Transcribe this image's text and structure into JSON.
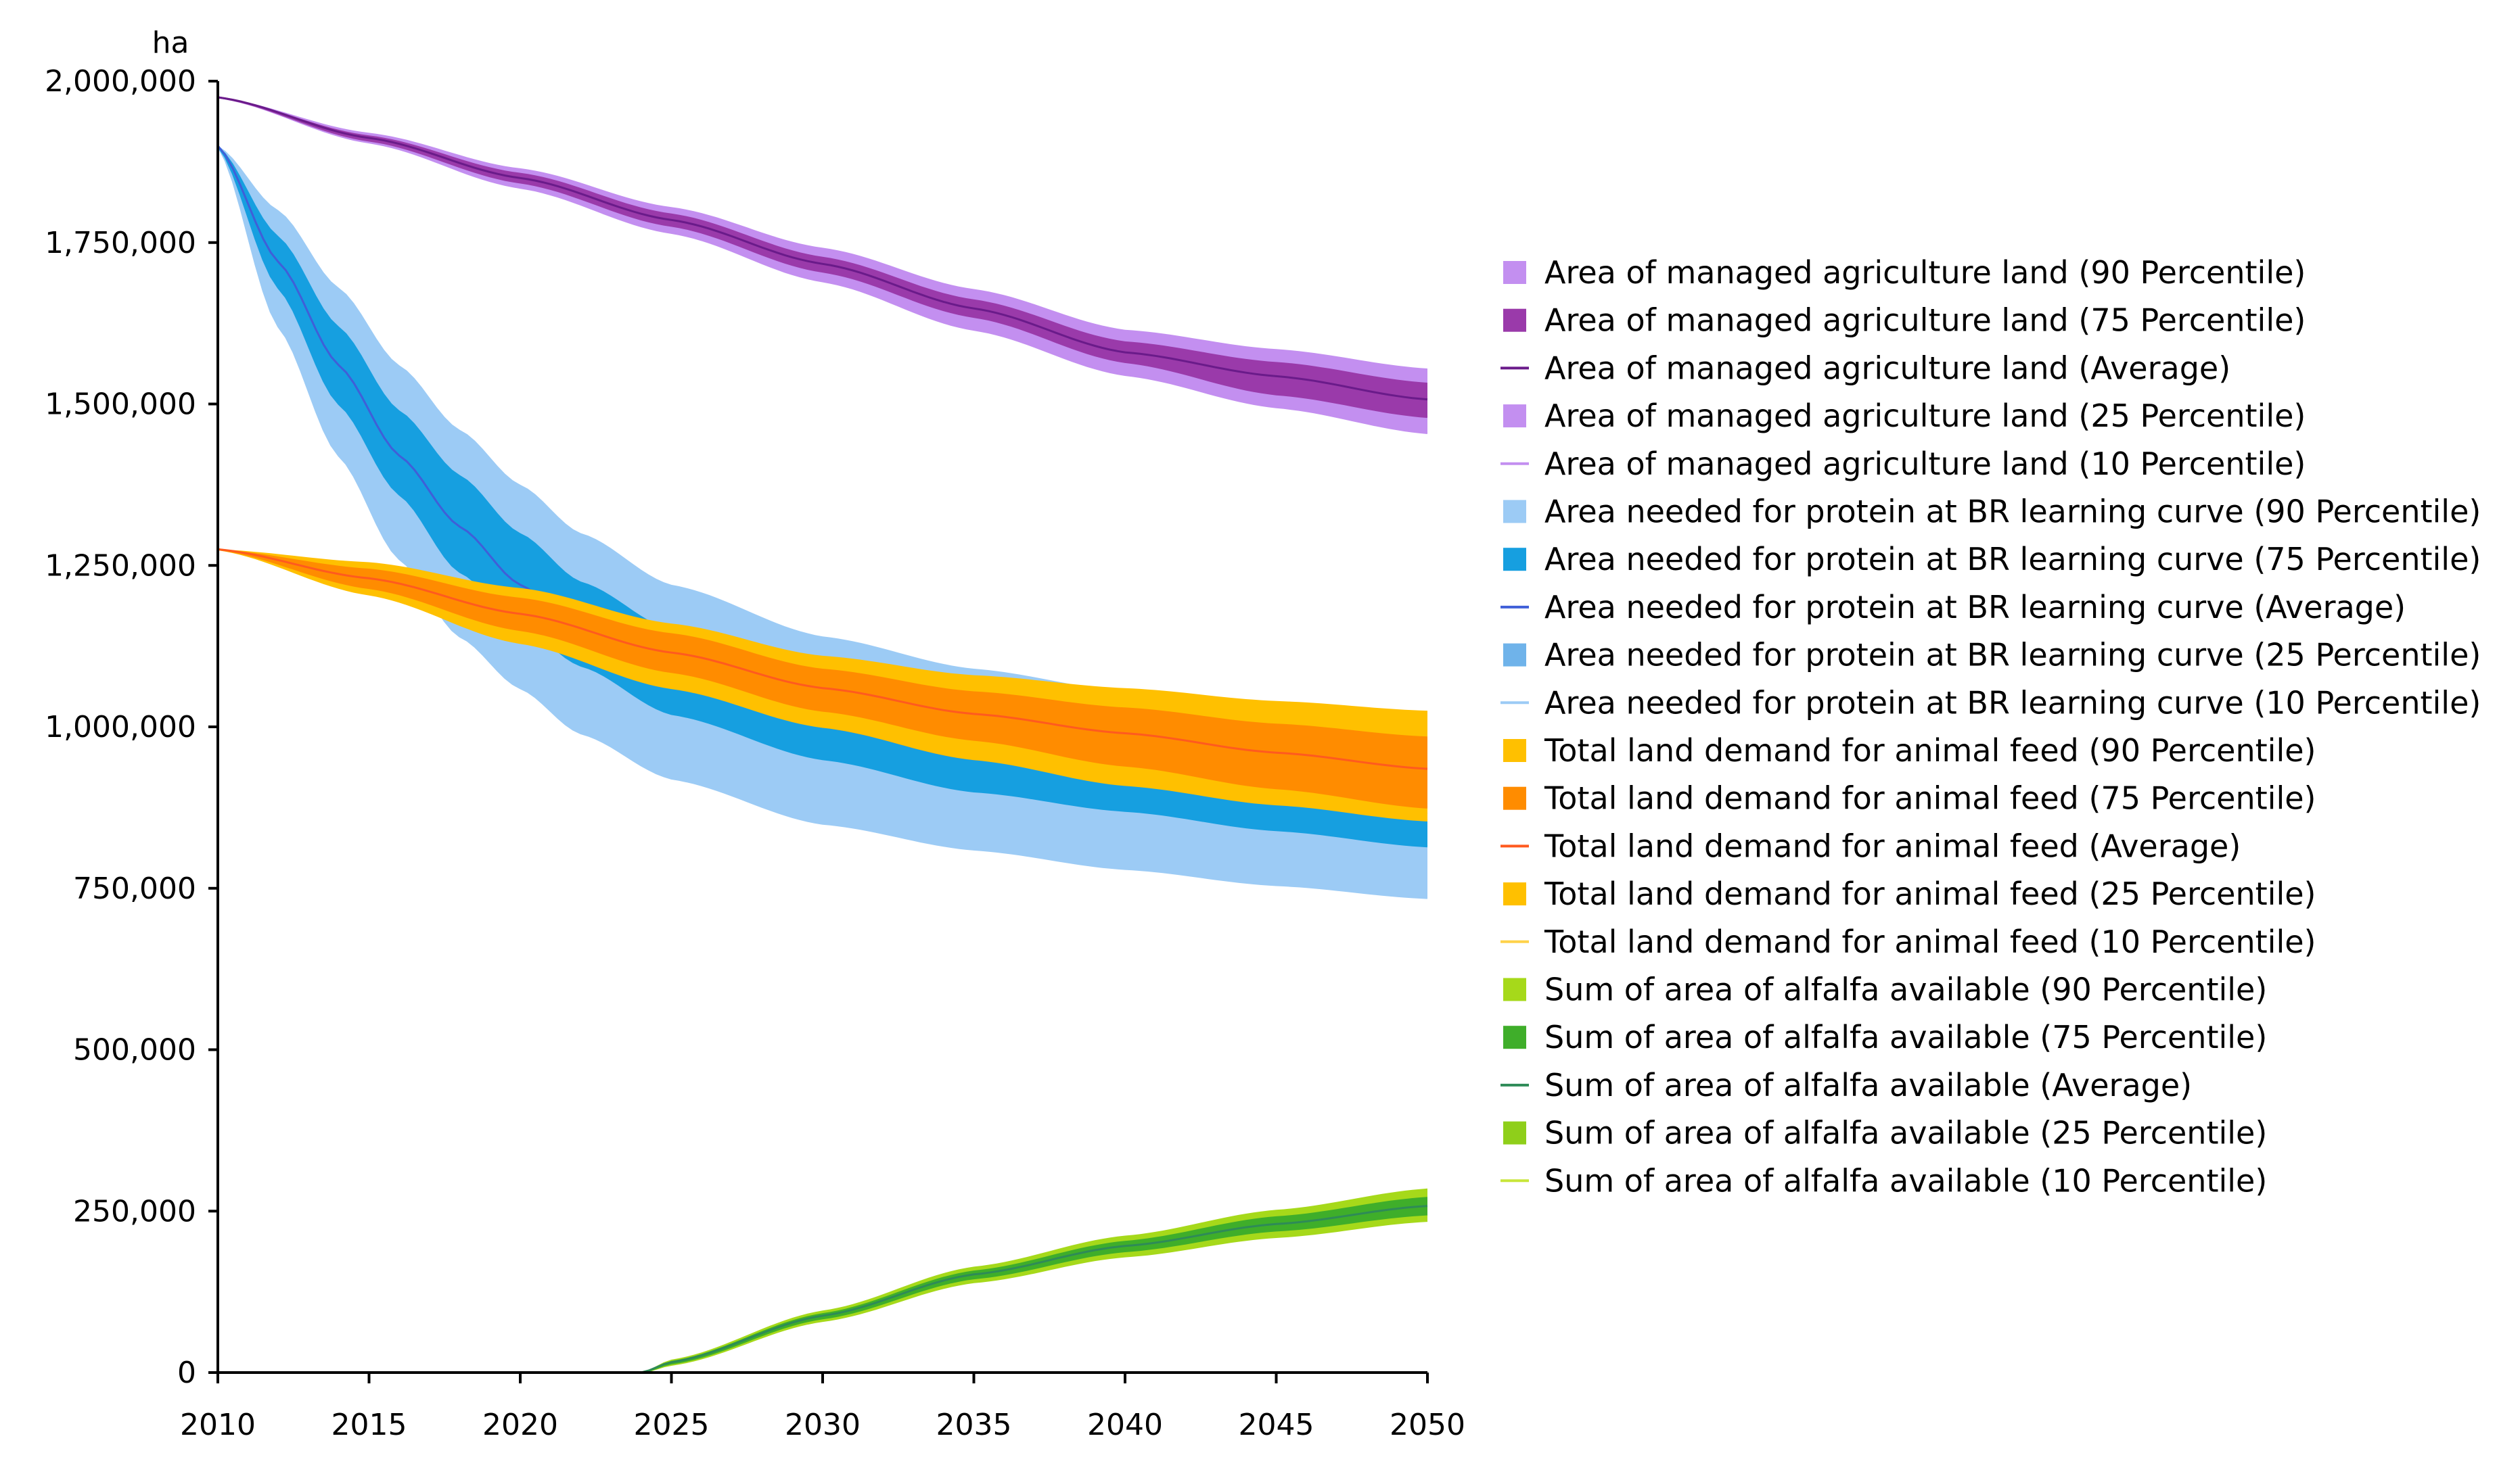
{
  "chart_data": {
    "type": "area",
    "title": "",
    "ylabel": "ha",
    "xlabel": "",
    "xlim": [
      2010,
      2050
    ],
    "ylim": [
      0,
      2000000
    ],
    "x_ticks": [
      2010,
      2015,
      2020,
      2025,
      2030,
      2035,
      2040,
      2045,
      2050
    ],
    "x_tick_labels": [
      "2010",
      "2015",
      "2020",
      "2025",
      "2030",
      "2035",
      "2040",
      "2045",
      "2050"
    ],
    "y_ticks": [
      0,
      250000,
      500000,
      750000,
      1000000,
      1250000,
      1500000,
      1750000,
      2000000
    ],
    "y_tick_labels": [
      "0",
      "250,000",
      "500,000",
      "750,000",
      "1,000,000",
      "1,250,000",
      "1,500,000",
      "1,750,000",
      "2,000,000"
    ],
    "legend_position": "right",
    "legend": [
      {
        "label": "Area of managed agriculture land (90 Percentile)",
        "color": "#c38ff0",
        "kind": "band"
      },
      {
        "label": "Area of managed agriculture land (75 Percentile)",
        "color": "#9a3aaa",
        "kind": "band"
      },
      {
        "label": "Area of managed agriculture land (Average)",
        "color": "#6a1b8a",
        "kind": "line"
      },
      {
        "label": "Area of managed agriculture land (25 Percentile)",
        "color": "#c38ff0",
        "kind": "band"
      },
      {
        "label": "Area of managed agriculture land (10 Percentile)",
        "color": "#c38ff0",
        "kind": "line"
      },
      {
        "label": "Area needed for protein at BR learning curve (90 Percentile)",
        "color": "#9ccbf5",
        "kind": "band"
      },
      {
        "label": "Area needed for protein at BR learning curve (75 Percentile)",
        "color": "#169fe0",
        "kind": "band"
      },
      {
        "label": "Area needed for protein at BR learning curve (Average)",
        "color": "#3f5fd8",
        "kind": "line"
      },
      {
        "label": "Area needed for protein at BR learning curve (25 Percentile)",
        "color": "#6fb3ea",
        "kind": "band"
      },
      {
        "label": "Area needed for protein at BR learning curve (10 Percentile)",
        "color": "#9ccbf5",
        "kind": "line"
      },
      {
        "label": "Total land demand for animal feed (90 Percentile)",
        "color": "#ffc000",
        "kind": "band"
      },
      {
        "label": "Total land demand for animal feed (75 Percentile)",
        "color": "#ff8c00",
        "kind": "band"
      },
      {
        "label": "Total land demand for animal feed (Average)",
        "color": "#ff5a1f",
        "kind": "line"
      },
      {
        "label": "Total land demand for animal feed (25 Percentile)",
        "color": "#ffc000",
        "kind": "band"
      },
      {
        "label": "Total land demand for animal feed (10 Percentile)",
        "color": "#ffd24a",
        "kind": "line"
      },
      {
        "label": "Sum of area of alfalfa available (90 Percentile)",
        "color": "#a6d91a",
        "kind": "band"
      },
      {
        "label": "Sum of area of alfalfa available (75 Percentile)",
        "color": "#3fae2a",
        "kind": "band"
      },
      {
        "label": "Sum of area of alfalfa available (Average)",
        "color": "#2e8b57",
        "kind": "line"
      },
      {
        "label": "Sum of area of alfalfa available (25 Percentile)",
        "color": "#8fcf1a",
        "kind": "band"
      },
      {
        "label": "Sum of area of alfalfa available (10 Percentile)",
        "color": "#c8e63a",
        "kind": "line"
      }
    ],
    "series": [
      {
        "name": "Area of managed agriculture land",
        "x": [
          2010,
          2015,
          2020,
          2025,
          2030,
          2035,
          2040,
          2045,
          2050
        ],
        "p10": [
          1975000,
          1905000,
          1835000,
          1765000,
          1690000,
          1615000,
          1545000,
          1495000,
          1455000
        ],
        "p25": [
          1975000,
          1908000,
          1843000,
          1776000,
          1705000,
          1635000,
          1565000,
          1515000,
          1480000
        ],
        "average": [
          1975000,
          1912000,
          1850000,
          1785000,
          1717000,
          1648000,
          1580000,
          1543000,
          1507000
        ],
        "p75": [
          1975000,
          1916000,
          1858000,
          1795000,
          1728000,
          1662000,
          1597000,
          1565000,
          1533000
        ],
        "p90": [
          1975000,
          1920000,
          1865000,
          1805000,
          1742000,
          1678000,
          1615000,
          1585000,
          1555000
        ],
        "colors": {
          "outer": "#c38ff0",
          "inner": "#9a3aaa",
          "mean": "#6a1b8a"
        }
      },
      {
        "name": "Area needed for protein at BR learning curve",
        "x": [
          2010,
          2012,
          2014,
          2016,
          2018,
          2020,
          2022,
          2025,
          2030,
          2035,
          2040,
          2045,
          2050
        ],
        "p10": [
          1900000,
          1620000,
          1420000,
          1260000,
          1140000,
          1060000,
          990000,
          920000,
          850000,
          810000,
          780000,
          755000,
          735000
        ],
        "p25": [
          1900000,
          1680000,
          1500000,
          1360000,
          1240000,
          1160000,
          1095000,
          1020000,
          950000,
          900000,
          870000,
          840000,
          815000
        ],
        "average": [
          1900000,
          1720000,
          1560000,
          1420000,
          1310000,
          1220000,
          1150000,
          1080000,
          1000000,
          950000,
          920000,
          890000,
          865000
        ],
        "p75": [
          1900000,
          1760000,
          1620000,
          1490000,
          1390000,
          1300000,
          1225000,
          1150000,
          1070000,
          1020000,
          985000,
          960000,
          945000
        ],
        "p90": [
          1900000,
          1800000,
          1680000,
          1560000,
          1460000,
          1375000,
          1300000,
          1220000,
          1140000,
          1090000,
          1055000,
          1025000,
          1000000
        ],
        "colors": {
          "outer": "#9ccbf5",
          "inner": "#169fe0",
          "mean": "#3f5fd8"
        }
      },
      {
        "name": "Total land demand for animal feed",
        "x": [
          2010,
          2015,
          2020,
          2025,
          2030,
          2035,
          2040,
          2045,
          2050
        ],
        "p10": [
          1275000,
          1205000,
          1130000,
          1060000,
          1000000,
          950000,
          910000,
          880000,
          855000
        ],
        "p25": [
          1275000,
          1215000,
          1150000,
          1085000,
          1025000,
          980000,
          940000,
          905000,
          875000
        ],
        "average": [
          1275000,
          1230000,
          1175000,
          1115000,
          1060000,
          1020000,
          990000,
          960000,
          935000
        ],
        "p75": [
          1275000,
          1245000,
          1200000,
          1145000,
          1090000,
          1055000,
          1030000,
          1005000,
          985000
        ],
        "p90": [
          1275000,
          1255000,
          1215000,
          1160000,
          1110000,
          1080000,
          1060000,
          1040000,
          1025000
        ],
        "colors": {
          "outer": "#ffc000",
          "inner": "#ff8c00",
          "mean": "#ff5a1f"
        }
      },
      {
        "name": "Sum of area of alfalfa available",
        "x": [
          2010,
          2024,
          2025,
          2030,
          2035,
          2040,
          2045,
          2050
        ],
        "p10": [
          0,
          0,
          12000,
          80000,
          140000,
          180000,
          210000,
          235000
        ],
        "p25": [
          0,
          0,
          14000,
          84000,
          146000,
          188000,
          220000,
          245000
        ],
        "average": [
          0,
          0,
          16000,
          88000,
          152000,
          196000,
          230000,
          258000
        ],
        "p75": [
          0,
          0,
          18000,
          92000,
          158000,
          204000,
          242000,
          272000
        ],
        "p90": [
          0,
          0,
          20000,
          96000,
          164000,
          212000,
          252000,
          285000
        ],
        "colors": {
          "outer": "#a6d91a",
          "inner": "#3fae2a",
          "mean": "#2e8b57"
        }
      }
    ]
  }
}
